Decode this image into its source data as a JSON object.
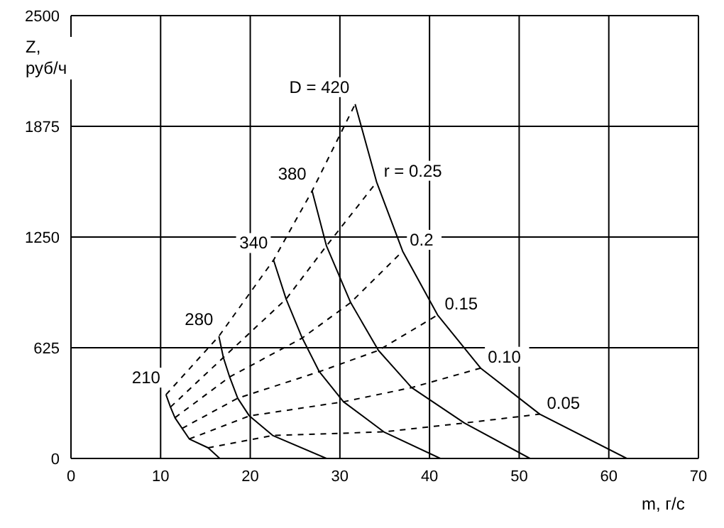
{
  "chart_data": {
    "type": "line",
    "xlabel": "m, г/с",
    "ylabel": "Z, руб/ч",
    "xlim": [
      0,
      70
    ],
    "xticks": [
      0,
      10,
      20,
      30,
      40,
      50,
      60,
      70
    ],
    "ylim": [
      0,
      2500
    ],
    "yticks": [
      0,
      625,
      1250,
      1875,
      2500
    ],
    "grid": true,
    "legend": false,
    "marker": "none",
    "series": [
      {
        "name": "210",
        "color": "#000000",
        "line_style": "solid",
        "x": [
          10.6,
          11.1,
          11.6,
          12.4,
          13.2,
          15.3,
          16.6
        ],
        "values": [
          360,
          290,
          230,
          170,
          110,
          60,
          0
        ]
      },
      {
        "name": "280",
        "color": "#000000",
        "line_style": "solid",
        "x": [
          16.5,
          17.0,
          17.7,
          18.6,
          19.9,
          22.5,
          28.5
        ],
        "values": [
          690,
          570,
          460,
          340,
          240,
          130,
          0
        ]
      },
      {
        "name": "340",
        "color": "#000000",
        "line_style": "solid",
        "x": [
          22.6,
          24.0,
          25.8,
          27.7,
          30.4,
          34.9,
          41.2
        ],
        "values": [
          1120,
          900,
          680,
          490,
          320,
          150,
          0
        ]
      },
      {
        "name": "380",
        "color": "#000000",
        "line_style": "solid",
        "x": [
          26.9,
          28.5,
          31.2,
          34.3,
          38.0,
          43.9,
          51.2
        ],
        "values": [
          1510,
          1200,
          880,
          610,
          400,
          200,
          0
        ]
      },
      {
        "name": "D = 420",
        "color": "#000000",
        "line_style": "solid",
        "x": [
          31.7,
          34.1,
          37.0,
          40.9,
          45.7,
          52.3,
          62.0
        ],
        "values": [
          2000,
          1560,
          1170,
          810,
          510,
          250,
          0
        ]
      },
      {
        "color": "#000000",
        "line_style": "dashed",
        "x": [
          10.6,
          16.5,
          22.6,
          26.9,
          31.7
        ],
        "values": [
          360,
          690,
          1120,
          1510,
          2000
        ]
      },
      {
        "name": "r = 0.25",
        "color": "#000000",
        "line_style": "dashed",
        "x": [
          11.1,
          17.0,
          24.0,
          28.5,
          34.1
        ],
        "values": [
          290,
          570,
          900,
          1200,
          1560
        ]
      },
      {
        "name": "0.2",
        "color": "#000000",
        "line_style": "dashed",
        "x": [
          11.6,
          17.7,
          25.8,
          31.2,
          37.0
        ],
        "values": [
          230,
          460,
          680,
          880,
          1170
        ]
      },
      {
        "name": "0.15",
        "color": "#000000",
        "line_style": "dashed",
        "x": [
          12.4,
          18.6,
          27.7,
          34.3,
          40.9
        ],
        "values": [
          170,
          340,
          490,
          610,
          810
        ]
      },
      {
        "name": "0.10",
        "color": "#000000",
        "line_style": "dashed",
        "x": [
          13.2,
          19.9,
          30.4,
          38.0,
          45.7
        ],
        "values": [
          110,
          240,
          320,
          400,
          510
        ]
      },
      {
        "name": "0.05",
        "color": "#000000",
        "line_style": "dashed",
        "x": [
          15.3,
          22.5,
          34.9,
          43.9,
          52.3
        ],
        "values": [
          60,
          130,
          150,
          200,
          250
        ]
      }
    ]
  }
}
